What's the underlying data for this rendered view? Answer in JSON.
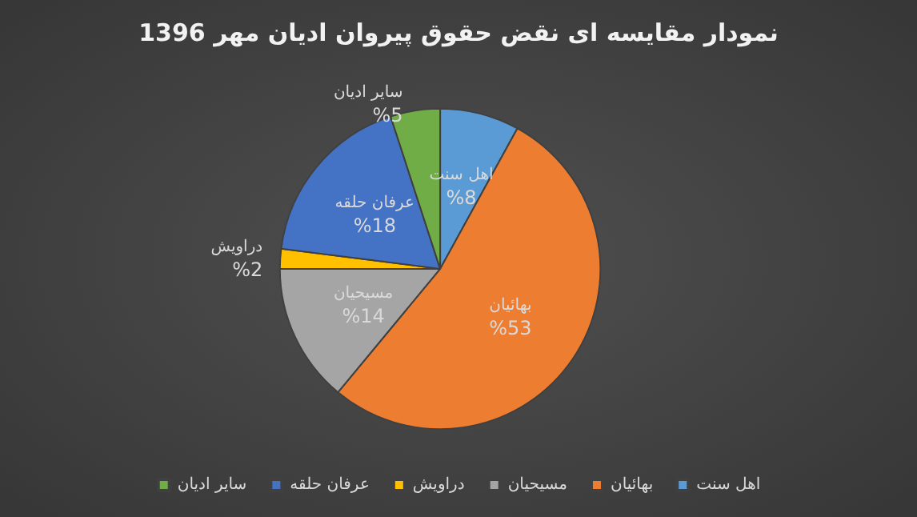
{
  "chart_data": {
    "type": "pie",
    "title": "نمودار مقایسه ای نقض حقوق پیروان ادیان مهر 1396",
    "categories": [
      "اهل سنت",
      "بهائیان",
      "مسیحیان",
      "دراویش",
      "عرفان حلقه",
      "سایر ادیان"
    ],
    "values": [
      8,
      53,
      14,
      2,
      18,
      5
    ],
    "value_labels": [
      "%8",
      "%53",
      "%14",
      "%2",
      "%18",
      "%5"
    ],
    "colors": [
      "#5b9bd5",
      "#ed7d31",
      "#a5a5a5",
      "#ffc000",
      "#4472c4",
      "#70ad47"
    ],
    "legend": "bottom"
  }
}
